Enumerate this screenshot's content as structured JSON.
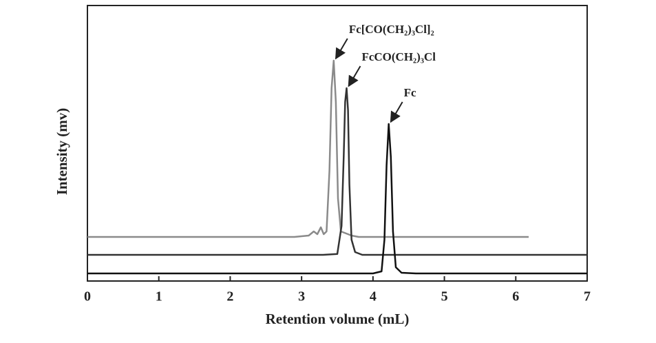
{
  "chart_data": {
    "type": "line",
    "x_label": "Retention volume (mL)",
    "y_label": "Intensity (mv)",
    "xlim": [
      0,
      7
    ],
    "xticks": [
      0,
      1,
      2,
      3,
      4,
      5,
      6,
      7
    ],
    "ylim": [
      0,
      100
    ],
    "series": [
      {
        "name": "Fc[CO(CH₂)₃Cl]₂",
        "color": "#8a8a8a",
        "x": [
          0,
          2.9,
          3.1,
          3.17,
          3.22,
          3.27,
          3.31,
          3.35,
          3.39,
          3.42,
          3.45,
          3.48,
          3.51,
          3.55,
          3.6,
          3.7,
          3.8,
          6.18
        ],
        "values": [
          16,
          16,
          16.5,
          18,
          17,
          19.5,
          17,
          18,
          40,
          70,
          80,
          65,
          30,
          18,
          17.5,
          16.5,
          16,
          16
        ]
      },
      {
        "name": "FcCO(CH₂)₃Cl",
        "color": "#333333",
        "x": [
          0,
          3.3,
          3.5,
          3.56,
          3.59,
          3.61,
          3.63,
          3.65,
          3.67,
          3.7,
          3.75,
          3.85,
          7
        ],
        "values": [
          9.5,
          9.5,
          9.8,
          20,
          45,
          65,
          70,
          62,
          35,
          15,
          10.5,
          9.5,
          9.5
        ]
      },
      {
        "name": "Fc",
        "color": "#111111",
        "x": [
          0,
          4.0,
          4.12,
          4.16,
          4.19,
          4.22,
          4.25,
          4.28,
          4.32,
          4.4,
          4.6,
          7
        ],
        "values": [
          2.75,
          2.75,
          3.5,
          15,
          42,
          57,
          45,
          18,
          5,
          3,
          2.75,
          2.75
        ]
      }
    ]
  }
}
